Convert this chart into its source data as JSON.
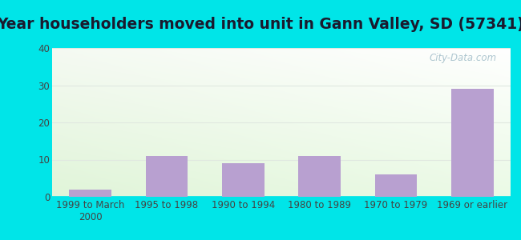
{
  "title": "Year householders moved into unit in Gann Valley, SD (57341)",
  "categories": [
    "1999 to March\n2000",
    "1995 to 1998",
    "1990 to 1994",
    "1980 to 1989",
    "1970 to 1979",
    "1969 or earlier"
  ],
  "values": [
    2,
    11,
    9,
    11,
    6,
    29
  ],
  "bar_color": "#b8a0d0",
  "ylim": [
    0,
    40
  ],
  "yticks": [
    0,
    10,
    20,
    30,
    40
  ],
  "outer_bg": "#00e5e8",
  "grid_color": "#e0e8e0",
  "title_fontsize": 13.5,
  "tick_fontsize": 8.5,
  "watermark": "City-Data.com"
}
